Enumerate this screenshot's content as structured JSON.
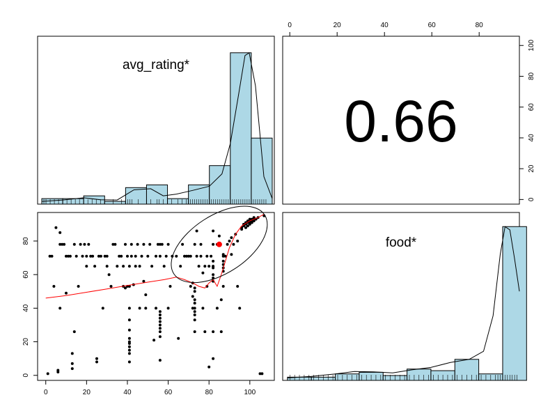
{
  "colors": {
    "hist_fill": "#add8e6",
    "frame": "#000000",
    "point": "#000000",
    "loess": "#ff0000",
    "centroid": "#ff0000"
  },
  "chart_data": {
    "type": "scatter",
    "subtype": "pairs-panels",
    "variables": [
      "avg_rating*",
      "food*"
    ],
    "correlation": {
      "label": "0.66",
      "value": 0.66
    },
    "axes": {
      "bottom_left_x": {
        "ticks": [
          "0",
          "20",
          "40",
          "60",
          "80",
          "100"
        ],
        "range": [
          -4,
          112
        ]
      },
      "bottom_left_y": {
        "ticks": [
          "0",
          "20",
          "40",
          "60",
          "80"
        ],
        "range": [
          -3,
          97
        ]
      },
      "top_right_x": {
        "ticks": [
          "0",
          "20",
          "40",
          "60",
          "80"
        ],
        "range": [
          -3,
          97
        ]
      },
      "top_right_y": {
        "ticks": [
          "0",
          "20",
          "40",
          "60",
          "80",
          "100"
        ],
        "range": [
          -3,
          106
        ]
      }
    },
    "hist_avg_rating": {
      "bins": [
        {
          "x0": 0,
          "x1": 10,
          "count": 2
        },
        {
          "x0": 10,
          "x1": 20,
          "count": 2
        },
        {
          "x0": 20,
          "x1": 30,
          "count": 3
        },
        {
          "x0": 30,
          "x1": 40,
          "count": 1
        },
        {
          "x0": 40,
          "x1": 50,
          "count": 6
        },
        {
          "x0": 50,
          "x1": 60,
          "count": 7
        },
        {
          "x0": 60,
          "x1": 70,
          "count": 2
        },
        {
          "x0": 70,
          "x1": 80,
          "count": 7
        },
        {
          "x0": 80,
          "x1": 90,
          "count": 14
        },
        {
          "x0": 90,
          "x1": 100,
          "count": 55
        },
        {
          "x0": 100,
          "x1": 110,
          "count": 24
        }
      ],
      "ymax": 60,
      "density": [
        [
          0,
          1
        ],
        [
          10,
          1.5
        ],
        [
          20,
          2.3
        ],
        [
          28,
          1.6
        ],
        [
          36,
          1.5
        ],
        [
          44,
          5.2
        ],
        [
          52,
          5.6
        ],
        [
          58,
          3
        ],
        [
          64,
          3.6
        ],
        [
          72,
          5
        ],
        [
          80,
          6.5
        ],
        [
          86,
          11
        ],
        [
          90,
          22
        ],
        [
          94,
          40
        ],
        [
          97,
          54
        ],
        [
          99,
          55
        ],
        [
          102,
          43
        ],
        [
          106,
          10
        ],
        [
          110,
          2
        ]
      ]
    },
    "hist_food": {
      "bins": [
        {
          "x0": 0,
          "x1": 10,
          "count": 2
        },
        {
          "x0": 10,
          "x1": 20,
          "count": 2
        },
        {
          "x0": 20,
          "x1": 30,
          "count": 4
        },
        {
          "x0": 30,
          "x1": 40,
          "count": 5
        },
        {
          "x0": 40,
          "x1": 50,
          "count": 3
        },
        {
          "x0": 50,
          "x1": 60,
          "count": 7
        },
        {
          "x0": 60,
          "x1": 70,
          "count": 6
        },
        {
          "x0": 70,
          "x1": 80,
          "count": 13
        },
        {
          "x0": 80,
          "x1": 90,
          "count": 4
        },
        {
          "x0": 90,
          "x1": 100,
          "count": 95
        }
      ],
      "ymax": 102,
      "density": [
        [
          0,
          1.5
        ],
        [
          10,
          2.5
        ],
        [
          20,
          4
        ],
        [
          28,
          5.5
        ],
        [
          36,
          5.3
        ],
        [
          44,
          4.6
        ],
        [
          52,
          6.5
        ],
        [
          60,
          8
        ],
        [
          68,
          11
        ],
        [
          76,
          13
        ],
        [
          82,
          18
        ],
        [
          86,
          40
        ],
        [
          89,
          78
        ],
        [
          91,
          95
        ],
        [
          93,
          93
        ],
        [
          95,
          75
        ],
        [
          97,
          55
        ]
      ]
    },
    "rug_avg_rating": [
      1,
      2,
      4,
      6,
      8,
      10,
      12,
      14,
      16,
      18,
      20,
      22,
      24,
      26,
      28,
      30,
      34,
      38,
      40,
      41,
      42,
      43,
      46,
      50,
      52,
      55,
      56,
      58,
      60,
      62,
      65,
      67,
      69,
      70,
      71,
      72,
      73,
      74,
      75,
      76,
      77,
      78,
      79,
      80,
      81,
      82,
      83,
      84,
      85,
      86,
      87,
      88,
      89,
      90,
      91,
      92,
      93,
      94,
      95,
      96,
      97,
      98,
      99,
      100,
      101,
      102,
      103,
      104,
      105,
      106,
      107
    ],
    "rug_food": [
      1,
      3,
      5,
      7,
      9,
      11,
      13,
      15,
      17,
      19,
      21,
      23,
      25,
      27,
      29,
      31,
      33,
      35,
      37,
      39,
      41,
      43,
      45,
      47,
      49,
      51,
      53,
      55,
      57,
      59,
      61,
      63,
      65,
      67,
      69,
      71,
      73,
      75,
      77,
      79,
      81,
      83,
      85,
      87,
      88,
      89,
      90,
      91,
      92,
      93,
      94,
      95,
      96
    ],
    "points": [
      [
        1,
        1
      ],
      [
        2,
        71
      ],
      [
        3,
        71
      ],
      [
        4,
        53
      ],
      [
        5,
        88
      ],
      [
        6,
        2
      ],
      [
        6,
        3
      ],
      [
        7,
        85
      ],
      [
        7,
        78
      ],
      [
        7,
        40
      ],
      [
        8,
        78
      ],
      [
        9,
        78
      ],
      [
        10,
        49
      ],
      [
        10,
        71
      ],
      [
        11,
        71
      ],
      [
        12,
        71
      ],
      [
        13,
        4
      ],
      [
        13,
        7
      ],
      [
        13,
        13
      ],
      [
        14,
        78
      ],
      [
        14,
        26
      ],
      [
        15,
        71
      ],
      [
        16,
        53
      ],
      [
        17,
        78
      ],
      [
        18,
        71
      ],
      [
        19,
        78
      ],
      [
        20,
        65
      ],
      [
        20,
        71
      ],
      [
        21,
        78
      ],
      [
        22,
        71
      ],
      [
        23,
        71
      ],
      [
        24,
        65
      ],
      [
        25,
        8
      ],
      [
        25,
        10
      ],
      [
        26,
        71
      ],
      [
        27,
        71
      ],
      [
        28,
        40
      ],
      [
        29,
        71
      ],
      [
        30,
        71
      ],
      [
        30,
        65
      ],
      [
        31,
        60
      ],
      [
        32,
        53
      ],
      [
        33,
        78
      ],
      [
        34,
        78
      ],
      [
        35,
        65
      ],
      [
        36,
        71
      ],
      [
        37,
        71
      ],
      [
        38,
        53
      ],
      [
        38,
        65
      ],
      [
        39,
        52
      ],
      [
        39,
        78
      ],
      [
        40,
        53
      ],
      [
        40,
        71
      ],
      [
        41,
        8
      ],
      [
        41,
        13
      ],
      [
        41,
        15
      ],
      [
        41,
        17
      ],
      [
        41,
        19
      ],
      [
        41,
        20
      ],
      [
        41,
        22
      ],
      [
        41,
        27
      ],
      [
        41,
        33
      ],
      [
        41,
        53
      ],
      [
        41,
        40
      ],
      [
        41,
        65
      ],
      [
        42,
        71
      ],
      [
        42,
        78
      ],
      [
        43,
        54
      ],
      [
        44,
        65
      ],
      [
        44,
        71
      ],
      [
        45,
        78
      ],
      [
        46,
        40
      ],
      [
        46,
        65
      ],
      [
        47,
        71
      ],
      [
        48,
        56
      ],
      [
        48,
        78
      ],
      [
        49,
        40
      ],
      [
        49,
        48
      ],
      [
        50,
        71
      ],
      [
        51,
        78
      ],
      [
        52,
        65
      ],
      [
        53,
        21
      ],
      [
        54,
        40
      ],
      [
        54,
        71
      ],
      [
        55,
        78
      ],
      [
        56,
        9
      ],
      [
        56,
        23
      ],
      [
        56,
        26
      ],
      [
        56,
        28
      ],
      [
        56,
        30
      ],
      [
        56,
        32
      ],
      [
        56,
        34
      ],
      [
        56,
        36
      ],
      [
        56,
        38
      ],
      [
        56,
        71
      ],
      [
        56,
        78
      ],
      [
        57,
        78
      ],
      [
        58,
        65
      ],
      [
        59,
        71
      ],
      [
        60,
        78
      ],
      [
        60,
        40
      ],
      [
        61,
        53
      ],
      [
        62,
        71
      ],
      [
        64,
        71
      ],
      [
        65,
        22
      ],
      [
        66,
        65
      ],
      [
        67,
        78
      ],
      [
        68,
        71
      ],
      [
        69,
        71
      ],
      [
        70,
        71
      ],
      [
        71,
        53
      ],
      [
        71,
        71
      ],
      [
        72,
        55
      ],
      [
        72,
        40
      ],
      [
        72,
        47
      ],
      [
        73,
        33
      ],
      [
        73,
        36
      ],
      [
        73,
        38
      ],
      [
        73,
        40
      ],
      [
        73,
        43
      ],
      [
        73,
        45
      ],
      [
        73,
        50
      ],
      [
        73,
        52
      ],
      [
        73,
        26
      ],
      [
        73,
        78
      ],
      [
        74,
        86
      ],
      [
        74,
        71
      ],
      [
        75,
        65
      ],
      [
        76,
        78
      ],
      [
        76,
        71
      ],
      [
        77,
        40
      ],
      [
        77,
        61
      ],
      [
        78,
        65
      ],
      [
        78,
        26
      ],
      [
        79,
        71
      ],
      [
        79,
        53
      ],
      [
        80,
        5
      ],
      [
        80,
        65
      ],
      [
        81,
        71
      ],
      [
        82,
        10
      ],
      [
        82,
        56
      ],
      [
        82,
        58
      ],
      [
        82,
        60
      ],
      [
        82,
        64
      ],
      [
        82,
        65
      ],
      [
        82,
        68
      ],
      [
        82,
        78
      ],
      [
        82,
        86
      ],
      [
        82,
        26
      ],
      [
        84,
        40
      ],
      [
        84,
        78
      ],
      [
        85,
        83
      ],
      [
        85,
        78
      ],
      [
        86,
        26
      ],
      [
        86,
        45
      ],
      [
        87,
        53
      ],
      [
        87,
        62
      ],
      [
        87,
        64
      ],
      [
        87,
        66
      ],
      [
        87,
        68
      ],
      [
        87,
        71
      ],
      [
        87,
        72
      ],
      [
        88,
        71
      ],
      [
        89,
        78
      ],
      [
        90,
        80
      ],
      [
        91,
        72
      ],
      [
        91,
        82
      ],
      [
        92,
        78
      ],
      [
        93,
        84
      ],
      [
        94,
        80
      ],
      [
        94,
        53
      ],
      [
        95,
        40
      ],
      [
        96,
        87
      ],
      [
        96,
        88
      ],
      [
        97,
        89
      ],
      [
        97,
        90
      ],
      [
        98,
        88
      ],
      [
        98,
        90
      ],
      [
        98,
        91
      ],
      [
        99,
        89
      ],
      [
        99,
        91
      ],
      [
        99,
        92
      ],
      [
        100,
        90
      ],
      [
        100,
        91
      ],
      [
        100,
        92
      ],
      [
        100,
        93
      ],
      [
        101,
        91
      ],
      [
        101,
        92
      ],
      [
        101,
        93
      ],
      [
        102,
        92
      ],
      [
        102,
        93
      ],
      [
        102,
        94
      ],
      [
        103,
        93
      ],
      [
        104,
        94
      ],
      [
        105,
        1
      ],
      [
        106,
        1
      ],
      [
        107,
        95
      ]
    ],
    "centroid": [
      85,
      78
    ],
    "loess": [
      [
        0,
        46
      ],
      [
        10,
        47.5
      ],
      [
        20,
        49.5
      ],
      [
        30,
        51.5
      ],
      [
        40,
        53.5
      ],
      [
        50,
        55.5
      ],
      [
        58,
        57
      ],
      [
        64,
        58.5
      ],
      [
        68,
        57
      ],
      [
        72,
        55
      ],
      [
        75,
        53
      ],
      [
        78,
        52
      ],
      [
        80,
        55
      ],
      [
        82,
        57
      ],
      [
        84,
        53
      ],
      [
        86,
        60
      ],
      [
        88,
        68
      ],
      [
        90,
        76
      ],
      [
        93,
        84
      ],
      [
        96,
        89
      ],
      [
        100,
        92
      ],
      [
        104,
        94
      ],
      [
        107,
        96
      ]
    ],
    "ellipse": {
      "center": [
        85,
        78
      ],
      "rx": 26,
      "ry": 10.5,
      "angle_deg": 33
    }
  }
}
